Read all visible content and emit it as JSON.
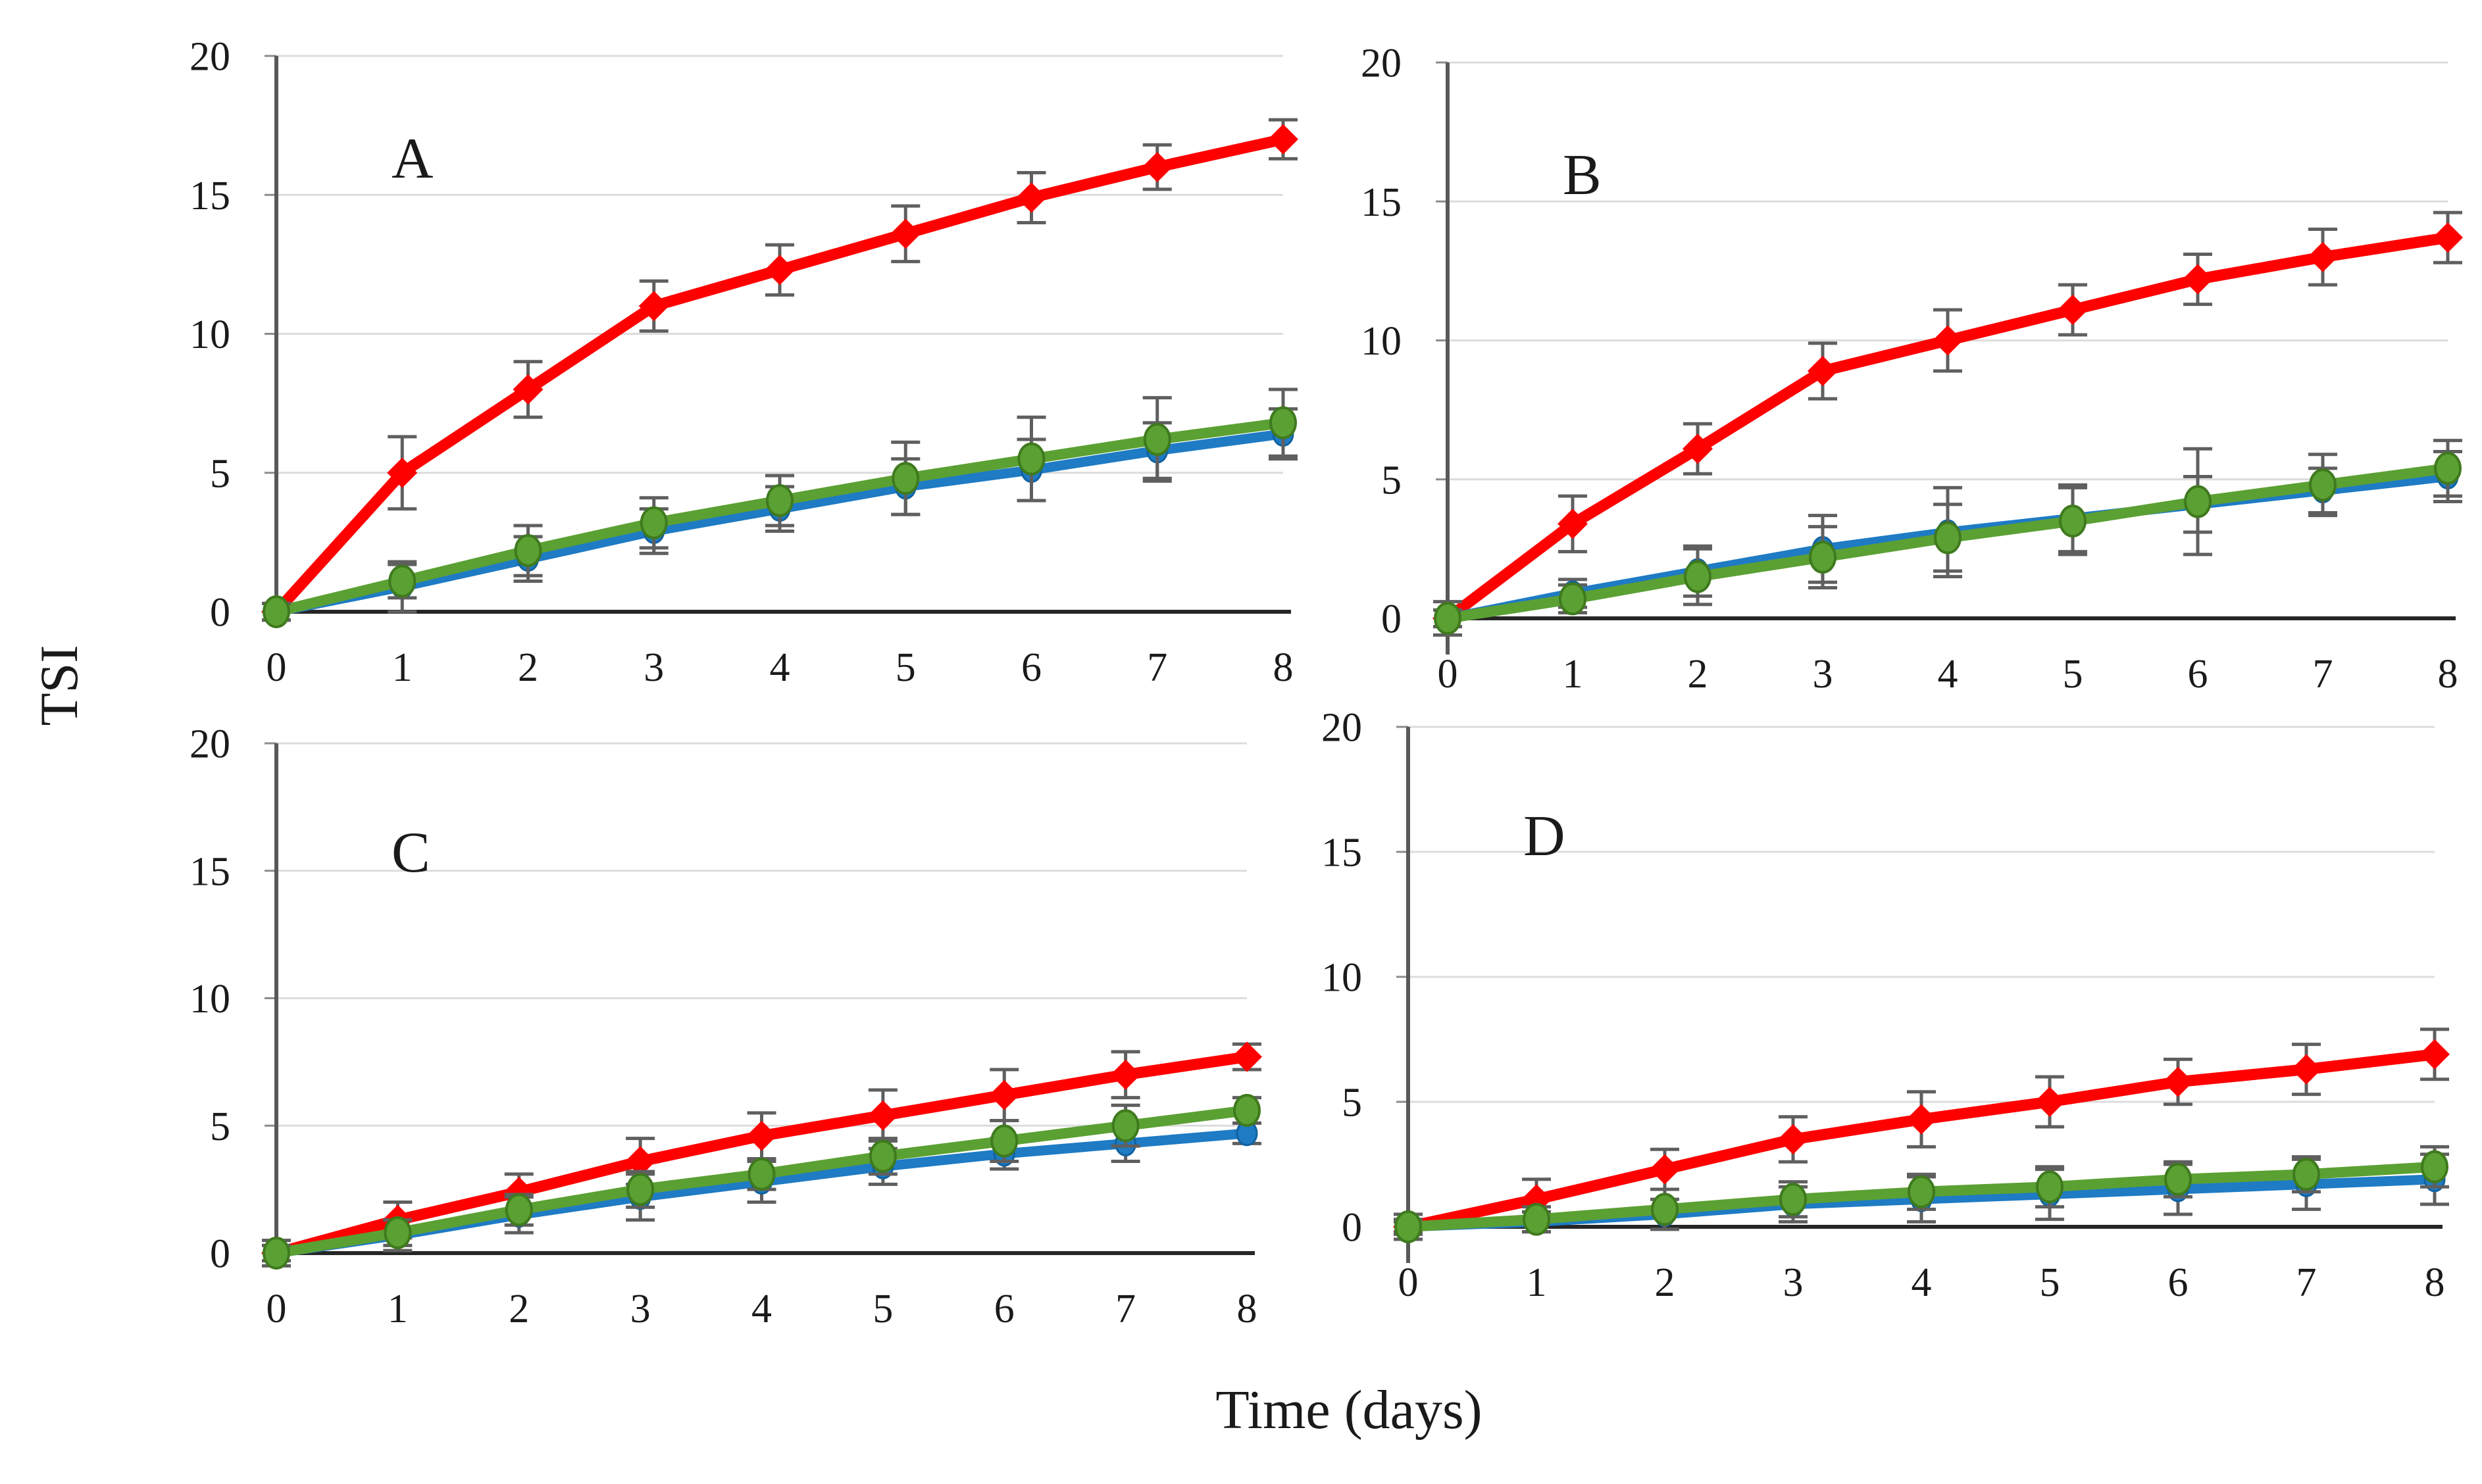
{
  "figure": {
    "ylabel": "TSI",
    "xlabel": "Time (days)"
  },
  "colors": {
    "red": "#fe0000",
    "green": "#5ba033",
    "green_edge": "#3f7a1e",
    "blue": "#1e7bc4",
    "blue_edge": "#10629f",
    "errorbar": "#5f5f5f",
    "gridline": "#dcdcdc",
    "x_axis": "#262626",
    "y_axis": "#595959",
    "text": "#1a1a1a"
  },
  "chart_data": [
    {
      "type": "line",
      "panel": "A",
      "x": [
        0,
        1,
        2,
        3,
        4,
        5,
        6,
        7,
        8
      ],
      "xlim": [
        0,
        8
      ],
      "ylim": [
        0,
        20
      ],
      "yticks": [
        0,
        5,
        10,
        15,
        20
      ],
      "xticks": [
        0,
        1,
        2,
        3,
        4,
        5,
        6,
        7,
        8
      ],
      "grid": true,
      "legend": "none",
      "series": [
        {
          "name": "red",
          "marker": "diamond",
          "color": "#fe0000",
          "edge": "#fe0000",
          "values": [
            0,
            5.0,
            8.0,
            11.0,
            12.3,
            13.6,
            14.9,
            16.0,
            17.0
          ],
          "errors": [
            0.3,
            1.3,
            1.0,
            0.9,
            0.9,
            1.0,
            0.9,
            0.8,
            0.7
          ]
        },
        {
          "name": "blue",
          "marker": "circle",
          "color": "#1e7bc4",
          "edge": "#10629f",
          "values": [
            0,
            0.9,
            1.9,
            2.9,
            3.7,
            4.5,
            5.1,
            5.8,
            6.4
          ],
          "errors": [
            0.3,
            0.9,
            0.8,
            0.8,
            0.8,
            1.0,
            1.1,
            1.0,
            0.9
          ]
        },
        {
          "name": "green",
          "marker": "circle",
          "color": "#5ba033",
          "edge": "#3f7a1e",
          "values": [
            0,
            1.1,
            2.2,
            3.2,
            4.0,
            4.8,
            5.5,
            6.2,
            6.8
          ],
          "errors": [
            0.3,
            0.6,
            0.9,
            0.9,
            0.9,
            1.3,
            1.5,
            1.5,
            1.2
          ]
        }
      ]
    },
    {
      "type": "line",
      "panel": "B",
      "x": [
        0,
        1,
        2,
        3,
        4,
        5,
        6,
        7,
        8
      ],
      "xlim": [
        0,
        8
      ],
      "ylim": [
        0,
        20
      ],
      "yticks": [
        0,
        5,
        10,
        15,
        20
      ],
      "xticks": [
        0,
        1,
        2,
        3,
        4,
        5,
        6,
        7,
        8
      ],
      "grid": true,
      "legend": "none",
      "series": [
        {
          "name": "red",
          "marker": "diamond",
          "color": "#fe0000",
          "edge": "#fe0000",
          "values": [
            0,
            3.4,
            6.1,
            8.9,
            10.0,
            11.1,
            12.2,
            13.0,
            13.7
          ],
          "errors": [
            0.6,
            1.0,
            0.9,
            1.0,
            1.1,
            0.9,
            0.9,
            1.0,
            0.9
          ]
        },
        {
          "name": "blue",
          "marker": "circle",
          "color": "#1e7bc4",
          "edge": "#10629f",
          "values": [
            0,
            0.9,
            1.7,
            2.5,
            3.1,
            3.6,
            4.1,
            4.6,
            5.1
          ],
          "errors": [
            0.3,
            0.5,
            0.9,
            1.2,
            1.6,
            1.2,
            1.0,
            0.8,
            0.9
          ]
        },
        {
          "name": "green",
          "marker": "circle",
          "color": "#5ba033",
          "edge": "#3f7a1e",
          "values": [
            0,
            0.7,
            1.5,
            2.2,
            2.9,
            3.5,
            4.2,
            4.8,
            5.4
          ],
          "errors": [
            0.3,
            0.5,
            1.0,
            1.1,
            1.2,
            1.2,
            1.9,
            1.1,
            1.0
          ]
        }
      ]
    },
    {
      "type": "line",
      "panel": "C",
      "x": [
        0,
        1,
        2,
        3,
        4,
        5,
        6,
        7,
        8
      ],
      "xlim": [
        0,
        8
      ],
      "ylim": [
        0,
        20
      ],
      "yticks": [
        0,
        5,
        10,
        15,
        20
      ],
      "xticks": [
        0,
        1,
        2,
        3,
        4,
        5,
        6,
        7,
        8
      ],
      "grid": true,
      "legend": "none",
      "series": [
        {
          "name": "red",
          "marker": "diamond",
          "color": "#fe0000",
          "edge": "#fe0000",
          "values": [
            0,
            1.3,
            2.4,
            3.6,
            4.6,
            5.4,
            6.2,
            7.0,
            7.7
          ],
          "errors": [
            0.5,
            0.7,
            0.7,
            0.9,
            0.9,
            1.0,
            1.0,
            0.9,
            0.5
          ]
        },
        {
          "name": "blue",
          "marker": "circle",
          "color": "#1e7bc4",
          "edge": "#10629f",
          "values": [
            0,
            0.7,
            1.5,
            2.2,
            2.8,
            3.4,
            3.9,
            4.3,
            4.7
          ],
          "errors": [
            0.3,
            0.6,
            0.7,
            0.9,
            0.8,
            0.7,
            0.6,
            0.7,
            0.4
          ]
        },
        {
          "name": "green",
          "marker": "circle",
          "color": "#5ba033",
          "edge": "#3f7a1e",
          "values": [
            0,
            0.8,
            1.7,
            2.5,
            3.1,
            3.8,
            4.4,
            5.0,
            5.6
          ],
          "errors": [
            0.3,
            0.5,
            0.6,
            0.7,
            0.6,
            0.7,
            0.8,
            0.8,
            0.5
          ]
        }
      ]
    },
    {
      "type": "line",
      "panel": "D",
      "x": [
        0,
        1,
        2,
        3,
        4,
        5,
        6,
        7,
        8
      ],
      "xlim": [
        0,
        8
      ],
      "ylim": [
        0,
        20
      ],
      "yticks": [
        0,
        5,
        10,
        15,
        20
      ],
      "xticks": [
        0,
        1,
        2,
        3,
        4,
        5,
        6,
        7,
        8
      ],
      "grid": true,
      "legend": "none",
      "series": [
        {
          "name": "red",
          "marker": "diamond",
          "color": "#fe0000",
          "edge": "#fe0000",
          "values": [
            0,
            1.1,
            2.3,
            3.5,
            4.3,
            5.0,
            5.8,
            6.3,
            6.9
          ],
          "errors": [
            0.5,
            0.8,
            0.8,
            0.9,
            1.1,
            1.0,
            0.9,
            1.0,
            1.0
          ]
        },
        {
          "name": "blue",
          "marker": "circle",
          "color": "#1e7bc4",
          "edge": "#10629f",
          "values": [
            0,
            0.2,
            0.5,
            0.9,
            1.1,
            1.3,
            1.5,
            1.7,
            1.9
          ],
          "errors": [
            0.2,
            0.4,
            0.6,
            0.7,
            0.9,
            1.0,
            1.0,
            1.0,
            1.0
          ]
        },
        {
          "name": "green",
          "marker": "circle",
          "color": "#5ba033",
          "edge": "#3f7a1e",
          "values": [
            0,
            0.3,
            0.7,
            1.1,
            1.4,
            1.6,
            1.9,
            2.1,
            2.4
          ],
          "errors": [
            0.3,
            0.5,
            0.8,
            0.7,
            0.7,
            0.8,
            0.7,
            0.7,
            0.8
          ]
        }
      ]
    }
  ]
}
